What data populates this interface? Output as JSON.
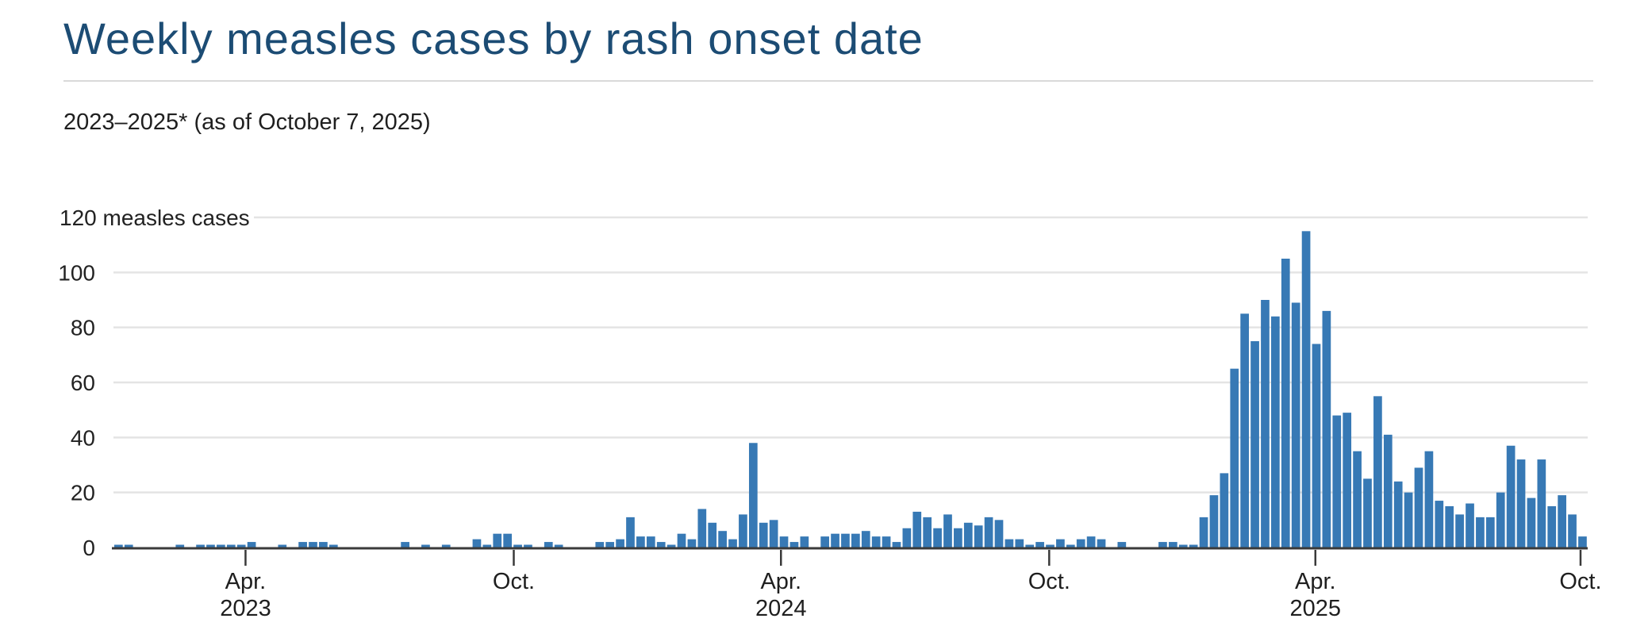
{
  "header": {
    "title": "Weekly measles cases by rash onset date",
    "subtitle": "2023–2025* (as of October 7, 2025)"
  },
  "colors": {
    "title_text": "#1c4c74",
    "subtitle_text": "#1f1f1f",
    "divider": "#d9d9d9",
    "bar_fill": "#3779b5",
    "grid_line": "#e4e4e4",
    "axis_line": "#3a3a3a",
    "label_text": "#222222",
    "background": "#ffffff"
  },
  "chart_data": {
    "type": "bar",
    "title": "Weekly measles cases by rash onset date",
    "subtitle": "2023–2025* (as of October 7, 2025)",
    "ylabel": "measles cases",
    "ylim": [
      0,
      120
    ],
    "grid": "horizontal",
    "legend": "none",
    "y_axis": {
      "ticks": [
        0,
        20,
        40,
        60,
        80,
        100
      ],
      "top_tick_value": 120,
      "top_tick_label": "120 measles cases",
      "tick_interval": 20
    },
    "x_axis": {
      "description": "weekly bars, Jan 2023 through early Oct 2025",
      "ticks": [
        {
          "pos": 12.4,
          "lines": [
            "Apr.",
            "2023"
          ]
        },
        {
          "pos": 38.6,
          "lines": [
            "Oct."
          ]
        },
        {
          "pos": 64.7,
          "lines": [
            "Apr.",
            "2024"
          ]
        },
        {
          "pos": 90.9,
          "lines": [
            "Oct."
          ]
        },
        {
          "pos": 116.9,
          "lines": [
            "Apr.",
            "2025"
          ]
        },
        {
          "pos": 142.8,
          "lines": [
            "Oct."
          ]
        }
      ]
    },
    "weekly_values": [
      1,
      1,
      0,
      0,
      0,
      0,
      1,
      0,
      1,
      1,
      1,
      1,
      1,
      2,
      0,
      0,
      1,
      0,
      2,
      2,
      2,
      1,
      0,
      0,
      0,
      0,
      0,
      0,
      2,
      0,
      1,
      0,
      1,
      0,
      0,
      3,
      1,
      5,
      5,
      1,
      1,
      0,
      2,
      1,
      0,
      0,
      0,
      2,
      2,
      3,
      11,
      4,
      4,
      2,
      1,
      5,
      3,
      14,
      9,
      6,
      3,
      12,
      38,
      9,
      10,
      4,
      2,
      4,
      0,
      4,
      5,
      5,
      5,
      6,
      4,
      4,
      2,
      7,
      13,
      11,
      7,
      12,
      7,
      9,
      8,
      11,
      10,
      3,
      3,
      1,
      2,
      1,
      3,
      1,
      3,
      4,
      3,
      0,
      2,
      0,
      0,
      0,
      2,
      2,
      1,
      1,
      11,
      19,
      27,
      65,
      85,
      75,
      90,
      84,
      105,
      89,
      115,
      74,
      86,
      48,
      49,
      35,
      25,
      55,
      41,
      24,
      20,
      29,
      35,
      17,
      15,
      12,
      16,
      11,
      11,
      20,
      37,
      32,
      18,
      32,
      15,
      19,
      12,
      4
    ]
  }
}
